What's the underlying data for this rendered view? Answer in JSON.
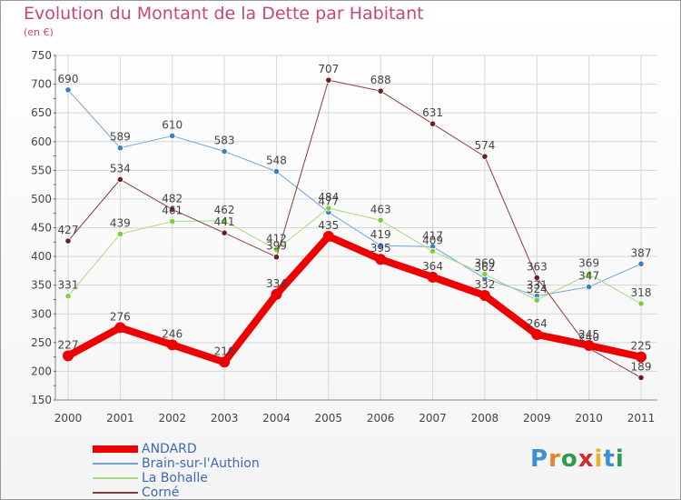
{
  "header": {
    "title": "Evolution du Montant de la Dette par Habitant",
    "subtitle": "(en €)"
  },
  "logo": {
    "text": "Proxiti",
    "letter_colors": [
      "#3c8fd6",
      "#e8812a",
      "#2f9c4d",
      "#c92f2f",
      "#e8b12a",
      "#3c8fd6",
      "#2f9c4d"
    ]
  },
  "chart_data": {
    "type": "line",
    "categories": [
      "2000",
      "2001",
      "2002",
      "2003",
      "2004",
      "2005",
      "2006",
      "2007",
      "2008",
      "2009",
      "2010",
      "2011"
    ],
    "ylim": [
      150,
      750
    ],
    "yticks": [
      150,
      200,
      250,
      300,
      350,
      400,
      450,
      500,
      550,
      600,
      650,
      700,
      750
    ],
    "grid": true,
    "legend_position": "bottom-left",
    "series": [
      {
        "name": "Brain-sur-l'Authion",
        "color": "#6fa3d8",
        "marker": "#3b7fc4",
        "width": 1,
        "values": [
          690,
          589,
          610,
          583,
          548,
          477,
          419,
          417,
          362,
          331,
          347,
          387
        ]
      },
      {
        "name": "La Bohalle",
        "color": "#a4dc7a",
        "marker": "#7ccf3c",
        "width": 1,
        "values": [
          331,
          439,
          461,
          462,
          412,
          484,
          463,
          409,
          369,
          324,
          369,
          318
        ]
      },
      {
        "name": "Corné",
        "color": "#8b3a3a",
        "marker": "#6b1f1f",
        "width": 1,
        "values": [
          427,
          534,
          482,
          441,
          399,
          707,
          688,
          631,
          574,
          363,
          240,
          189
        ]
      },
      {
        "name": "ANDARD",
        "color": "#ee0000",
        "marker": "#ee0000",
        "width": 8,
        "values": [
          227,
          276,
          246,
          216,
          334,
          435,
          395,
          364,
          332,
          264,
          245,
          225
        ]
      }
    ],
    "legend_order": [
      "ANDARD",
      "Brain-sur-l'Authion",
      "La Bohalle",
      "Corné"
    ]
  }
}
